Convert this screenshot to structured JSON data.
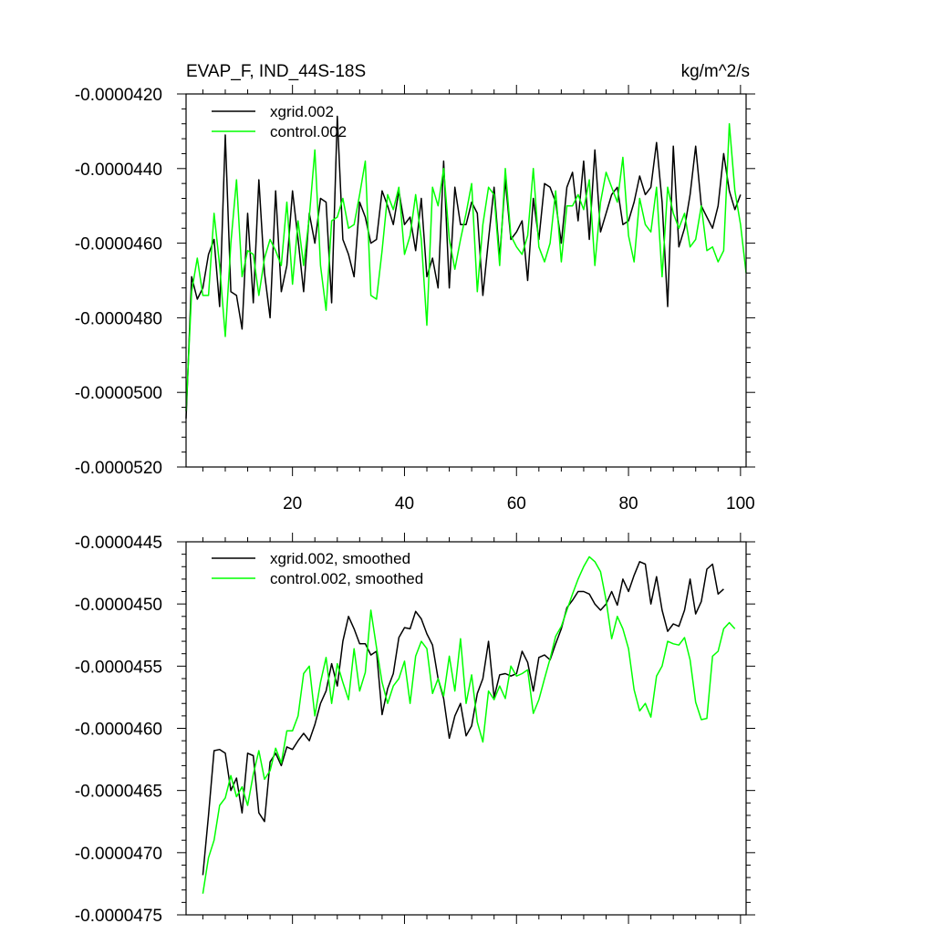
{
  "chart_data": [
    {
      "type": "line",
      "title": "EVAP_F, IND_44S-18S",
      "units": "kg/m^2/s",
      "xlabel": "",
      "ylabel": "",
      "xlim": [
        1,
        101
      ],
      "ylim": [
        -5.2e-05,
        -4.2e-05
      ],
      "xticks": [
        20,
        40,
        60,
        80,
        100
      ],
      "xtick_labels": [
        "20",
        "40",
        "60",
        "80",
        "100"
      ],
      "yticks": [
        -5.2e-05,
        -5e-05,
        -4.8e-05,
        -4.6e-05,
        -4.4e-05,
        -4.2e-05
      ],
      "ytick_labels": [
        "-0.0000520",
        "-0.0000500",
        "-0.0000480",
        "-0.0000460",
        "-0.0000440",
        "-0.0000420"
      ],
      "legend_position": "top-left",
      "series": [
        {
          "name": "xgrid.002",
          "color": "#000000",
          "x_start": 1,
          "values": [
            -5.07e-05,
            -4.69e-05,
            -4.75e-05,
            -4.72e-05,
            -4.63e-05,
            -4.59e-05,
            -4.77e-05,
            -4.31e-05,
            -4.73e-05,
            -4.74e-05,
            -4.83e-05,
            -4.52e-05,
            -4.76e-05,
            -4.43e-05,
            -4.68e-05,
            -4.8e-05,
            -4.46e-05,
            -4.73e-05,
            -4.66e-05,
            -4.46e-05,
            -4.59e-05,
            -4.73e-05,
            -4.52e-05,
            -4.6e-05,
            -4.48e-05,
            -4.49e-05,
            -4.76e-05,
            -4.26e-05,
            -4.59e-05,
            -4.63e-05,
            -4.69e-05,
            -4.49e-05,
            -4.53e-05,
            -4.6e-05,
            -4.59e-05,
            -4.46e-05,
            -4.5e-05,
            -4.55e-05,
            -4.46e-05,
            -4.55e-05,
            -4.53e-05,
            -4.62e-05,
            -4.48e-05,
            -4.69e-05,
            -4.64e-05,
            -4.72e-05,
            -4.38e-05,
            -4.72e-05,
            -4.45e-05,
            -4.55e-05,
            -4.55e-05,
            -4.49e-05,
            -4.52e-05,
            -4.74e-05,
            -4.59e-05,
            -4.45e-05,
            -4.64e-05,
            -4.43e-05,
            -4.59e-05,
            -4.57e-05,
            -4.54e-05,
            -4.7e-05,
            -4.48e-05,
            -4.59e-05,
            -4.44e-05,
            -4.45e-05,
            -4.49e-05,
            -4.6e-05,
            -4.45e-05,
            -4.41e-05,
            -4.54e-05,
            -4.38e-05,
            -4.59e-05,
            -4.35e-05,
            -4.57e-05,
            -4.52e-05,
            -4.47e-05,
            -4.45e-05,
            -4.55e-05,
            -4.54e-05,
            -4.49e-05,
            -4.42e-05,
            -4.47e-05,
            -4.45e-05,
            -4.33e-05,
            -4.49e-05,
            -4.77e-05,
            -4.34e-05,
            -4.61e-05,
            -4.56e-05,
            -4.47e-05,
            -4.34e-05,
            -4.5e-05,
            -4.53e-05,
            -4.56e-05,
            -4.5e-05,
            -4.36e-05,
            -4.46e-05,
            -4.51e-05,
            -4.47e-05
          ]
        },
        {
          "name": "control.002",
          "color": "#00ff00",
          "x_start": 1,
          "values": [
            -5.05e-05,
            -4.73e-05,
            -4.64e-05,
            -4.74e-05,
            -4.74e-05,
            -4.52e-05,
            -4.66e-05,
            -4.85e-05,
            -4.6e-05,
            -4.43e-05,
            -4.69e-05,
            -4.62e-05,
            -4.63e-05,
            -4.74e-05,
            -4.64e-05,
            -4.59e-05,
            -4.62e-05,
            -4.66e-05,
            -4.49e-05,
            -4.71e-05,
            -4.54e-05,
            -4.66e-05,
            -4.53e-05,
            -4.35e-05,
            -4.66e-05,
            -4.78e-05,
            -4.54e-05,
            -4.53e-05,
            -4.48e-05,
            -4.56e-05,
            -4.55e-05,
            -4.47e-05,
            -4.38e-05,
            -4.74e-05,
            -4.75e-05,
            -4.62e-05,
            -4.47e-05,
            -4.51e-05,
            -4.45e-05,
            -4.63e-05,
            -4.58e-05,
            -4.47e-05,
            -4.59e-05,
            -4.82e-05,
            -4.45e-05,
            -4.5e-05,
            -4.4e-05,
            -4.59e-05,
            -4.67e-05,
            -4.59e-05,
            -4.52e-05,
            -4.44e-05,
            -4.73e-05,
            -4.55e-05,
            -4.45e-05,
            -4.47e-05,
            -4.66e-05,
            -4.4e-05,
            -4.58e-05,
            -4.61e-05,
            -4.63e-05,
            -4.58e-05,
            -4.4e-05,
            -4.61e-05,
            -4.65e-05,
            -4.6e-05,
            -4.46e-05,
            -4.65e-05,
            -4.5e-05,
            -4.5e-05,
            -4.47e-05,
            -4.51e-05,
            -4.43e-05,
            -4.66e-05,
            -4.49e-05,
            -4.41e-05,
            -4.45e-05,
            -4.49e-05,
            -4.37e-05,
            -4.58e-05,
            -4.65e-05,
            -4.48e-05,
            -4.55e-05,
            -4.57e-05,
            -4.45e-05,
            -4.69e-05,
            -4.45e-05,
            -4.52e-05,
            -4.56e-05,
            -4.52e-05,
            -4.61e-05,
            -4.59e-05,
            -4.5e-05,
            -4.62e-05,
            -4.61e-05,
            -4.65e-05,
            -4.62e-05,
            -4.28e-05,
            -4.46e-05,
            -4.55e-05,
            -4.68e-05
          ]
        }
      ]
    },
    {
      "type": "line",
      "title": "",
      "xlabel": "",
      "ylabel": "",
      "xlim": [
        1,
        101
      ],
      "ylim": [
        -4.75e-05,
        -4.45e-05
      ],
      "xticks": [
        20,
        40,
        60,
        80,
        100
      ],
      "xtick_labels": [],
      "yticks": [
        -4.75e-05,
        -4.7e-05,
        -4.65e-05,
        -4.6e-05,
        -4.55e-05,
        -4.5e-05,
        -4.45e-05
      ],
      "ytick_labels": [
        "-0.0000475",
        "-0.0000470",
        "-0.0000465",
        "-0.0000460",
        "-0.0000455",
        "-0.0000450",
        "-0.0000445"
      ],
      "legend_position": "top-left",
      "series": [
        {
          "name": "xgrid.002, smoothed",
          "color": "#000000",
          "x_start": 4,
          "values": [
            -4.718e-05,
            -4.67e-05,
            -4.618e-05,
            -4.617e-05,
            -4.62e-05,
            -4.65e-05,
            -4.64e-05,
            -4.668e-05,
            -4.62e-05,
            -4.622e-05,
            -4.668e-05,
            -4.675e-05,
            -4.627e-05,
            -4.62e-05,
            -4.63e-05,
            -4.615e-05,
            -4.617e-05,
            -4.61e-05,
            -4.604e-05,
            -4.61e-05,
            -4.597e-05,
            -4.58e-05,
            -4.57e-05,
            -4.548e-05,
            -4.566e-05,
            -4.53e-05,
            -4.51e-05,
            -4.52e-05,
            -4.532e-05,
            -4.532e-05,
            -4.541e-05,
            -4.538e-05,
            -4.589e-05,
            -4.568e-05,
            -4.556e-05,
            -4.527e-05,
            -4.519e-05,
            -4.52e-05,
            -4.506e-05,
            -4.512e-05,
            -4.524e-05,
            -4.533e-05,
            -4.56e-05,
            -4.576e-05,
            -4.608e-05,
            -4.59e-05,
            -4.58e-05,
            -4.606e-05,
            -4.598e-05,
            -4.572e-05,
            -4.56e-05,
            -4.53e-05,
            -4.575e-05,
            -4.557e-05,
            -4.556e-05,
            -4.558e-05,
            -4.556e-05,
            -4.538e-05,
            -4.547e-05,
            -4.57e-05,
            -4.543e-05,
            -4.541e-05,
            -4.545e-05,
            -4.532e-05,
            -4.52e-05,
            -4.503e-05,
            -4.497e-05,
            -4.49e-05,
            -4.49e-05,
            -4.492e-05,
            -4.5e-05,
            -4.505e-05,
            -4.5e-05,
            -4.49e-05,
            -4.501e-05,
            -4.48e-05,
            -4.49e-05,
            -4.477e-05,
            -4.466e-05,
            -4.468e-05,
            -4.5e-05,
            -4.478e-05,
            -4.505e-05,
            -4.522e-05,
            -4.516e-05,
            -4.518e-05,
            -4.505e-05,
            -4.48e-05,
            -4.508e-05,
            -4.498e-05,
            -4.472e-05,
            -4.468e-05,
            -4.492e-05,
            -4.488e-05
          ]
        },
        {
          "name": "control.002, smoothed",
          "color": "#00ff00",
          "x_start": 4,
          "values": [
            -4.733e-05,
            -4.704e-05,
            -4.69e-05,
            -4.662e-05,
            -4.656e-05,
            -4.638e-05,
            -4.655e-05,
            -4.647e-05,
            -4.662e-05,
            -4.637e-05,
            -4.618e-05,
            -4.641e-05,
            -4.634e-05,
            -4.616e-05,
            -4.628e-05,
            -4.602e-05,
            -4.602e-05,
            -4.59e-05,
            -4.556e-05,
            -4.55e-05,
            -4.59e-05,
            -4.563e-05,
            -4.543e-05,
            -4.58e-05,
            -4.548e-05,
            -4.563e-05,
            -4.577e-05,
            -4.536e-05,
            -4.57e-05,
            -4.555e-05,
            -4.505e-05,
            -4.535e-05,
            -4.563e-05,
            -4.58e-05,
            -4.566e-05,
            -4.56e-05,
            -4.546e-05,
            -4.58e-05,
            -4.542e-05,
            -4.53e-05,
            -4.536e-05,
            -4.572e-05,
            -4.56e-05,
            -4.574e-05,
            -4.542e-05,
            -4.57e-05,
            -4.528e-05,
            -4.58e-05,
            -4.557e-05,
            -4.595e-05,
            -4.611e-05,
            -4.57e-05,
            -4.577e-05,
            -4.566e-05,
            -4.576e-05,
            -4.55e-05,
            -4.558e-05,
            -4.556e-05,
            -4.553e-05,
            -4.588e-05,
            -4.577e-05,
            -4.56e-05,
            -4.544e-05,
            -4.526e-05,
            -4.518e-05,
            -4.505e-05,
            -4.492e-05,
            -4.48e-05,
            -4.47e-05,
            -4.462e-05,
            -4.466e-05,
            -4.474e-05,
            -4.497e-05,
            -4.528e-05,
            -4.51e-05,
            -4.52e-05,
            -4.536e-05,
            -4.569e-05,
            -4.586e-05,
            -4.58e-05,
            -4.591e-05,
            -4.558e-05,
            -4.55e-05,
            -4.53e-05,
            -4.532e-05,
            -4.533e-05,
            -4.527e-05,
            -4.545e-05,
            -4.579e-05,
            -4.593e-05,
            -4.592e-05,
            -4.542e-05,
            -4.538e-05,
            -4.52e-05,
            -4.515e-05,
            -4.52e-05
          ]
        }
      ]
    }
  ]
}
